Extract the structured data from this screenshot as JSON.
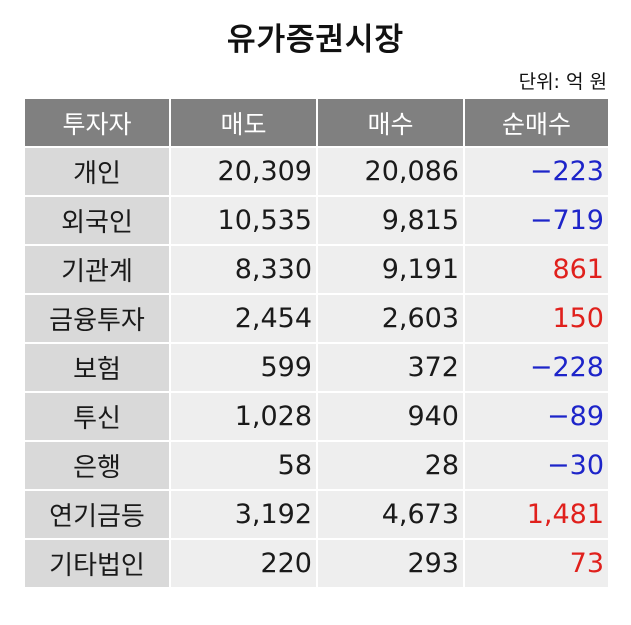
{
  "title": "유가증권시장",
  "unit": "단위: 억 원",
  "headers": [
    "투자자",
    "매도",
    "매수",
    "순매수"
  ],
  "rows": [
    {
      "investor": "개인",
      "sell": "20,309",
      "buy": "20,086",
      "net": "−223"
    },
    {
      "investor": "외국인",
      "sell": "10,535",
      "buy": "9,815",
      "net": "−719"
    },
    {
      "investor": "기관계",
      "sell": "8,330",
      "buy": "9,191",
      "net": "861"
    },
    {
      "investor": "금융투자",
      "sell": "2,454",
      "buy": "2,603",
      "net": "150"
    },
    {
      "investor": "보험",
      "sell": "599",
      "buy": "372",
      "net": "−228"
    },
    {
      "investor": "투신",
      "sell": "1,028",
      "buy": "940",
      "net": "−89"
    },
    {
      "investor": "은행",
      "sell": "58",
      "buy": "28",
      "net": "−30"
    },
    {
      "investor": "연기금등",
      "sell": "3,192",
      "buy": "4,673",
      "net": "1,481"
    },
    {
      "investor": "기타법인",
      "sell": "220",
      "buy": "293",
      "net": "73"
    }
  ],
  "colors": {
    "negative": "#1d24c9",
    "positive": "#e0201c",
    "header_bg": "#808080"
  }
}
